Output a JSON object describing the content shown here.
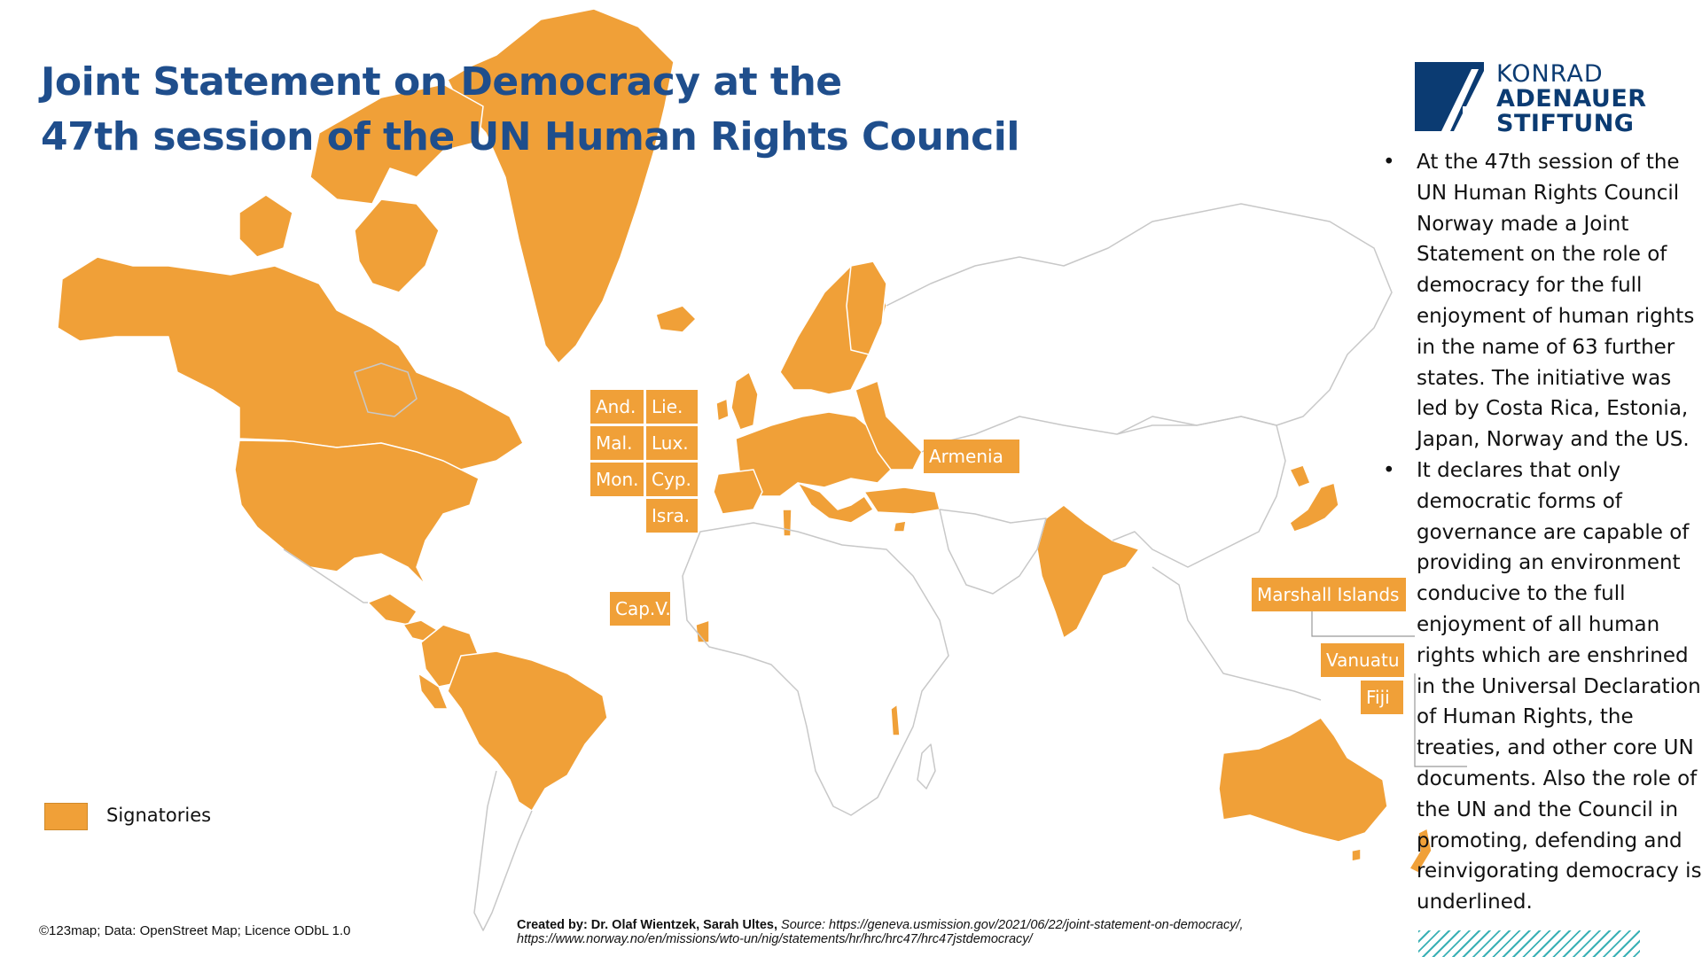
{
  "title": {
    "line1": "Joint Statement on Democracy at the",
    "line2": "47th session of the UN Human Rights Council"
  },
  "logo": {
    "line1": "KONRAD",
    "line2": "ADENAUER",
    "line3": "STIFTUNG"
  },
  "bullets": [
    "At the 47th session of the UN Human Rights Council Norway made a Joint Statement on the role of democracy for the full enjoyment of human rights in the name of 63 further states. The initiative was led by Costa Rica, Estonia, Japan, Norway and the US.",
    "It declares that only democratic forms of governance are capable of providing an environment conducive to the full enjoyment of all human rights which are enshrined in the Universal Declaration of Human Rights, the treaties, and other core UN documents. Also the role of the UN and the Council in  promoting, defending and reinvigorating democracy is underlined."
  ],
  "country_labels": {
    "and": "And.",
    "lie": "Lie.",
    "mal": "Mal.",
    "lux": "Lux.",
    "mon": "Mon.",
    "cyp": "Cyp.",
    "isra": "Isra.",
    "armenia": "Armenia",
    "capv": "Cap.V.",
    "marshall": "Marshall Islands",
    "vanuatu": "Vanuatu",
    "fiji": "Fiji"
  },
  "legend": {
    "label": "Signatories",
    "color": "#f0a038"
  },
  "colors": {
    "signatory": "#f0a038",
    "non_signatory_border": "#c8c8c8",
    "title": "#1f4e8c"
  },
  "footer": {
    "copyright": "©123map; Data: OpenStreet Map; Licence ODbL 1.0",
    "created_by": "Created by: Dr. Olaf Wientzek, Sarah Ultes,",
    "source_line1": "Source: https://geneva.usmission.gov/2021/06/22/joint-statement-on-democracy/,",
    "source_line2": "https://www.norway.no/en/missions/wto-un/nig/statements/hr/hrc/hrc47/hrc47jstdemocracy/"
  }
}
